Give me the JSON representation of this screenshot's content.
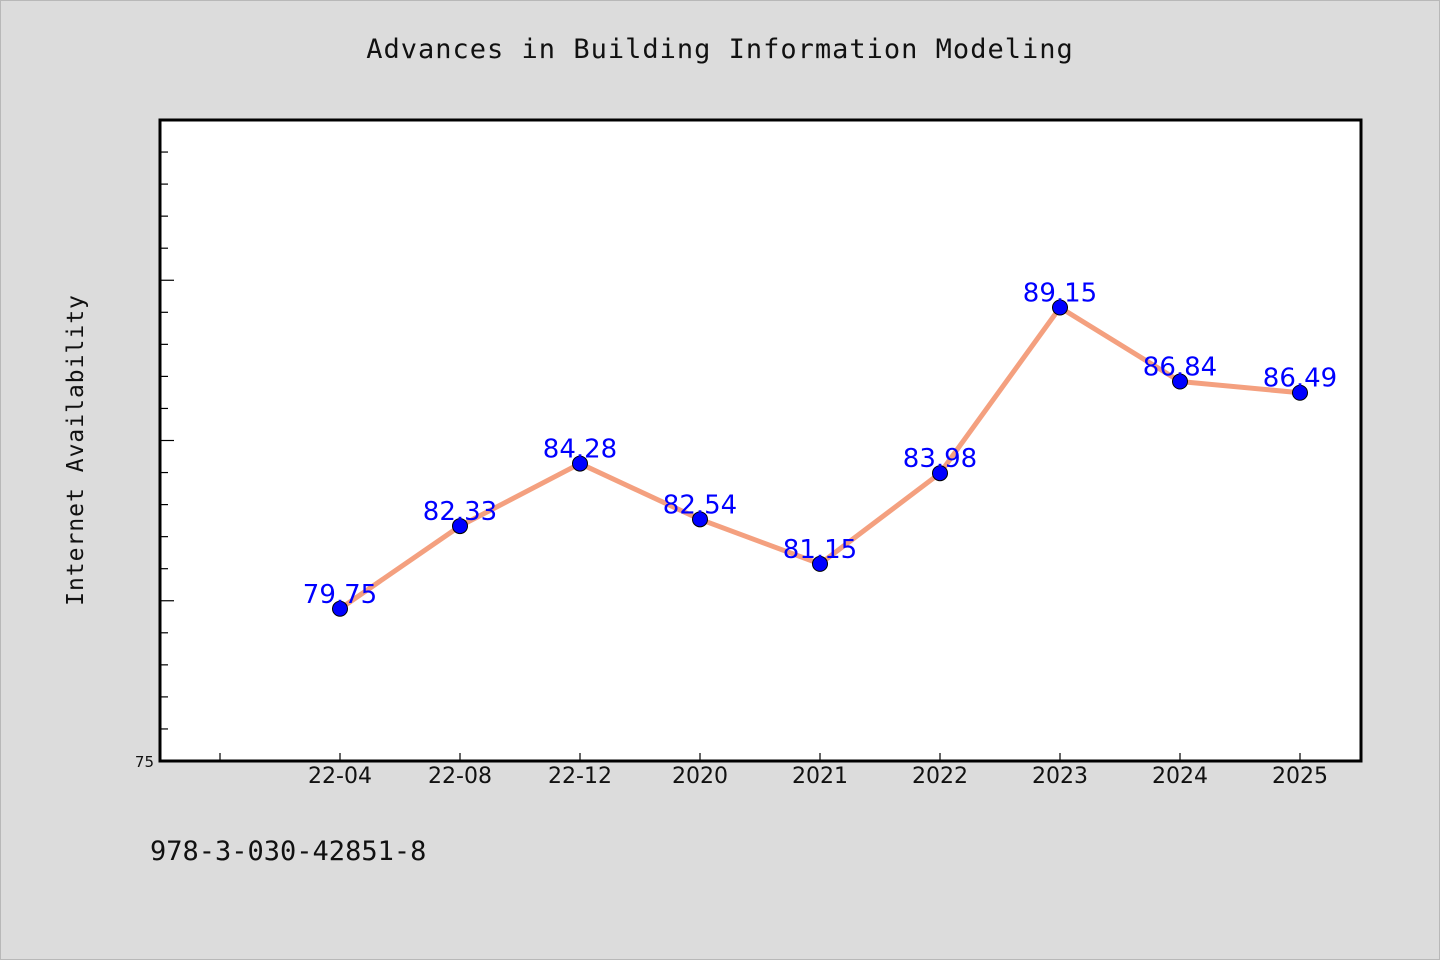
{
  "chart_data": {
    "type": "line",
    "title": "Advances in Building Information Modeling",
    "xlabel": "",
    "ylabel": "Internet Availability",
    "categories": [
      "22-04",
      "22-08",
      "22-12",
      "2020",
      "2021",
      "2022",
      "2023",
      "2024",
      "2025"
    ],
    "series": [
      {
        "values": [
          79.75,
          82.33,
          84.28,
          82.54,
          81.15,
          83.98,
          89.15,
          86.84,
          86.49
        ]
      }
    ],
    "data_labels": [
      "79.75",
      "82.33",
      "84.28",
      "82.54",
      "81.15",
      "83.98",
      "89.15",
      "86.84",
      "86.49"
    ],
    "ylim": [
      75,
      95
    ],
    "yticks_labeled": [
      "75"
    ],
    "grid": false,
    "legend": "none",
    "colors": {
      "line": "#f4a07f",
      "marker": "#0000ff",
      "label": "#0000ff",
      "background": "#dcdcdc",
      "plot_area": "#ffffff"
    }
  },
  "footer": {
    "id_text": "978-3-030-42851-8"
  }
}
